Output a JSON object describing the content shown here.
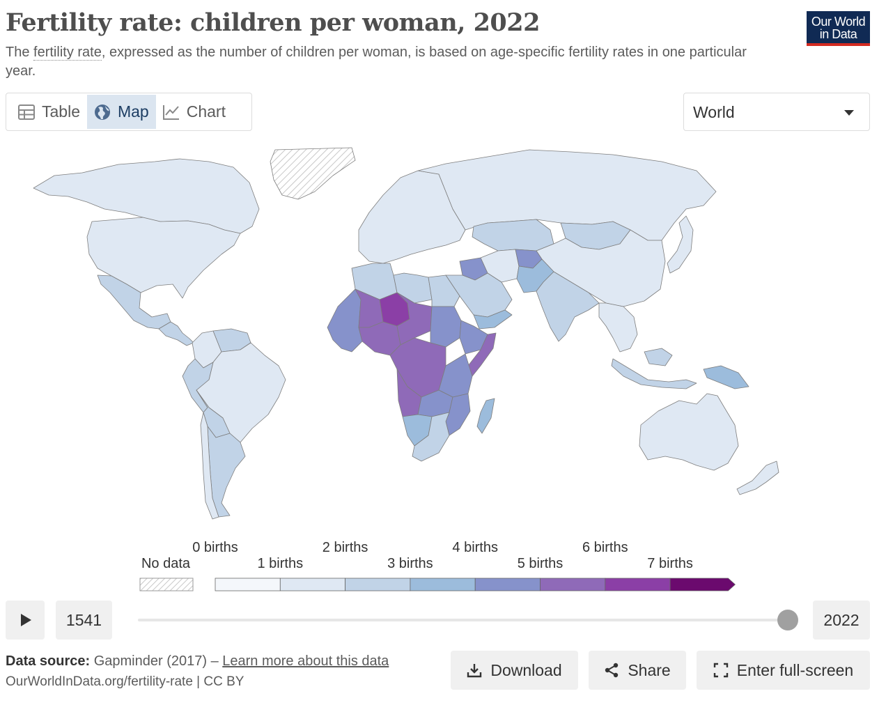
{
  "header": {
    "title": "Fertility rate: children per woman, 2022",
    "subtitle_pre": "The ",
    "subtitle_link": "fertility rate",
    "subtitle_post": ", expressed as the number of children per woman, is based on age-specific fertility rates in one particular year.",
    "logo_line1": "Our World",
    "logo_line2": "in Data"
  },
  "tabs": [
    {
      "label": "Table",
      "icon": "table-icon",
      "active": false
    },
    {
      "label": "Map",
      "icon": "globe-icon",
      "active": true
    },
    {
      "label": "Chart",
      "icon": "line-chart-icon",
      "active": false
    }
  ],
  "region_select": {
    "value": "World"
  },
  "colors": {
    "no_data_hatch": "#c8c8c8",
    "border": "#7d7d7d",
    "accent": "#1d3d63",
    "logo_bg": "#102a54",
    "logo_bar": "#d42b21",
    "bins": [
      "#f4f7fb",
      "#dfe8f3",
      "#c1d3e7",
      "#9cbcdc",
      "#8692cb",
      "#8f6ab8",
      "#8b3fa6",
      "#6b0a6e"
    ]
  },
  "legend": {
    "no_data_label": "No data",
    "upper_labels": [
      "0 births",
      "2 births",
      "4 births",
      "6 births"
    ],
    "lower_labels": [
      "1 births",
      "3 births",
      "5 births",
      "7 births"
    ],
    "bin_edges": [
      0,
      1,
      2,
      3,
      4,
      5,
      6,
      7
    ]
  },
  "timeline": {
    "start_year": "1541",
    "end_year": "2022",
    "play_icon": "play-icon",
    "position_fraction": 1.0
  },
  "footer": {
    "source_label": "Data source:",
    "source_text": " Gapminder (2017) – ",
    "learn_more": "Learn more about this data",
    "url_text": "OurWorldInData.org/fertility-rate | CC BY"
  },
  "actions": {
    "download_label": "Download",
    "share_label": "Share",
    "fullscreen_label": "Enter full-screen"
  },
  "map_regions": [
    {
      "name": "Greenland",
      "bin": -1
    },
    {
      "name": "Canada",
      "bin": 1
    },
    {
      "name": "United States",
      "bin": 1
    },
    {
      "name": "Mexico",
      "bin": 2
    },
    {
      "name": "Central America",
      "bin": 2
    },
    {
      "name": "Colombia",
      "bin": 1
    },
    {
      "name": "Venezuela",
      "bin": 2
    },
    {
      "name": "Brazil",
      "bin": 1
    },
    {
      "name": "Peru",
      "bin": 2
    },
    {
      "name": "Bolivia",
      "bin": 2
    },
    {
      "name": "Argentina",
      "bin": 2
    },
    {
      "name": "Chile",
      "bin": 1
    },
    {
      "name": "Europe",
      "bin": 1
    },
    {
      "name": "Russia",
      "bin": 1
    },
    {
      "name": "Kazakhstan",
      "bin": 2
    },
    {
      "name": "Mongolia",
      "bin": 2
    },
    {
      "name": "China",
      "bin": 1
    },
    {
      "name": "India",
      "bin": 2
    },
    {
      "name": "Pakistan",
      "bin": 3
    },
    {
      "name": "Afghanistan",
      "bin": 4
    },
    {
      "name": "Iran",
      "bin": 1
    },
    {
      "name": "Iraq",
      "bin": 4
    },
    {
      "name": "Saudi Arabia",
      "bin": 2
    },
    {
      "name": "Yemen",
      "bin": 3
    },
    {
      "name": "Southeast Asia",
      "bin": 1
    },
    {
      "name": "Indonesia",
      "bin": 2
    },
    {
      "name": "Papua New Guinea",
      "bin": 3
    },
    {
      "name": "Australia",
      "bin": 1
    },
    {
      "name": "New Zealand",
      "bin": 1
    },
    {
      "name": "Japan",
      "bin": 1
    },
    {
      "name": "Algeria",
      "bin": 2
    },
    {
      "name": "Libya",
      "bin": 2
    },
    {
      "name": "Egypt",
      "bin": 2
    },
    {
      "name": "Mali",
      "bin": 5
    },
    {
      "name": "Niger",
      "bin": 6
    },
    {
      "name": "Chad",
      "bin": 5
    },
    {
      "name": "Sudan",
      "bin": 4
    },
    {
      "name": "Ethiopia",
      "bin": 4
    },
    {
      "name": "Somalia",
      "bin": 5
    },
    {
      "name": "Nigeria",
      "bin": 5
    },
    {
      "name": "West Africa",
      "bin": 4
    },
    {
      "name": "DR Congo",
      "bin": 5
    },
    {
      "name": "Angola",
      "bin": 5
    },
    {
      "name": "Tanzania",
      "bin": 4
    },
    {
      "name": "Mozambique",
      "bin": 4
    },
    {
      "name": "Zambia",
      "bin": 4
    },
    {
      "name": "Namibia",
      "bin": 3
    },
    {
      "name": "South Africa",
      "bin": 2
    },
    {
      "name": "Madagascar",
      "bin": 3
    }
  ]
}
